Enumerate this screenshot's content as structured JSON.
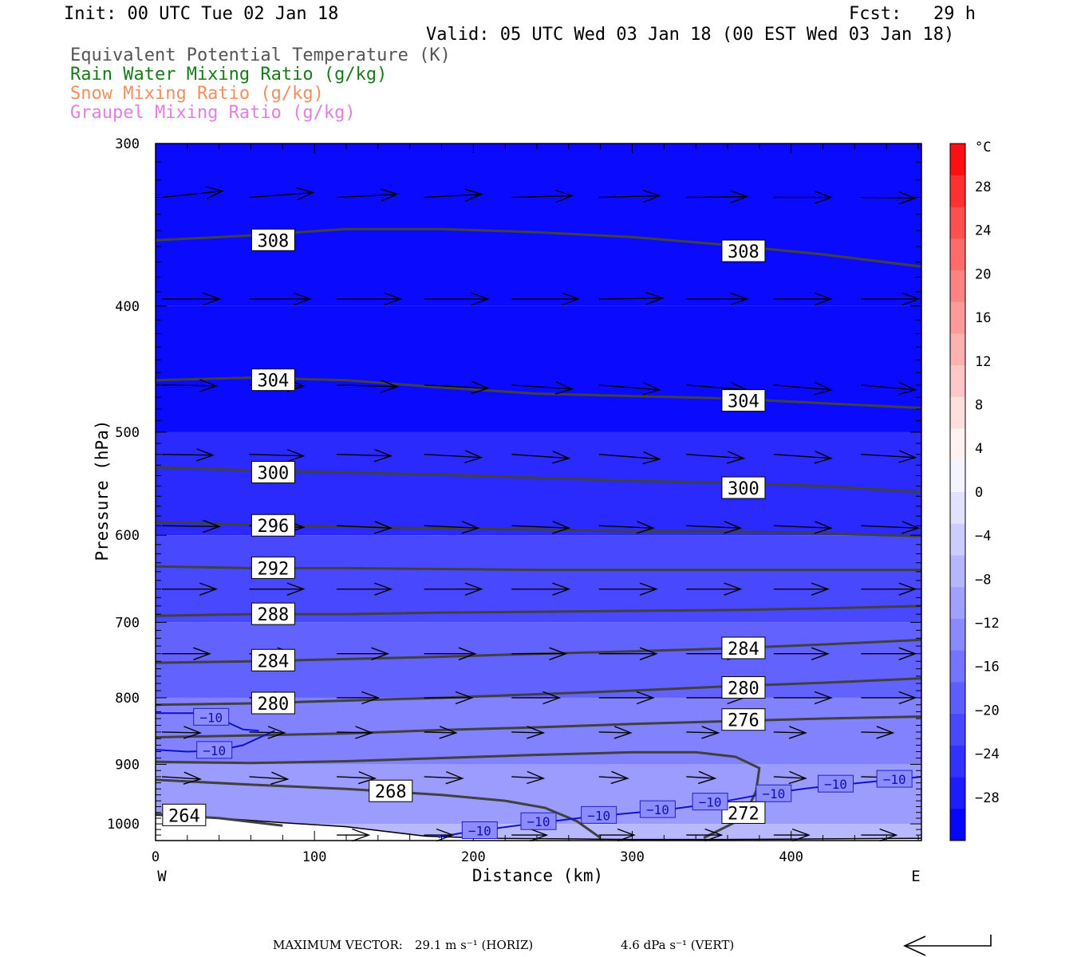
{
  "header": {
    "init": "Init: 00 UTC Tue 02 Jan 18",
    "fcst": "Fcst:   29 h",
    "valid": "Valid: 05 UTC Wed 03 Jan 18 (00 EST Wed 03 Jan 18)"
  },
  "legend": [
    {
      "label": "Equivalent Potential Temperature (K)",
      "color": "#555555"
    },
    {
      "label": "Rain Water Mixing Ratio (g/kg)",
      "color": "#1a7a1a"
    },
    {
      "label": "Snow Mixing Ratio (g/kg)",
      "color": "#f09060"
    },
    {
      "label": "Graupel Mixing Ratio (g/kg)",
      "color": "#e080e0"
    }
  ],
  "footer": {
    "max_vector_label": "MAXIMUM VECTOR:",
    "horiz": "29.1 m s⁻¹ (HORIZ)",
    "vert": "4.6 dPa s⁻¹ (VERT)"
  },
  "chart_data": {
    "type": "cross-section",
    "xlabel": "Distance (km)",
    "ylabel": "Pressure (hPa)",
    "x_range": [
      0,
      482
    ],
    "y_range": [
      300,
      1030
    ],
    "y_log": true,
    "x_ticks": [
      0,
      100,
      200,
      300,
      400
    ],
    "y_ticks": [
      300,
      400,
      500,
      600,
      700,
      800,
      900,
      1000
    ],
    "x_end_labels": {
      "left": "W",
      "right": "E"
    },
    "colorbar": {
      "unit": "°C",
      "tick_labels": [
        28,
        24,
        20,
        16,
        12,
        8,
        4,
        0,
        -4,
        -8,
        -12,
        -16,
        -20,
        -24,
        -28
      ],
      "colors": [
        "#ff1010",
        "#ff3030",
        "#ff5050",
        "#ff6a6a",
        "#ff8282",
        "#ff9a9a",
        "#ffb0b0",
        "#ffc8c8",
        "#ffdede",
        "#fff2f2",
        "#f4f4ff",
        "#e2e2ff",
        "#ccccff",
        "#b6b6ff",
        "#a0a0ff",
        "#8a8aff",
        "#7474ff",
        "#5e5eff",
        "#4848ff",
        "#3232ff",
        "#1c1cff",
        "#0606ff"
      ]
    },
    "temperature_fill": {
      "levels": [
        300,
        400,
        500,
        600,
        700,
        800,
        900,
        1000
      ],
      "colors": [
        "#0a0aff",
        "#0a0aff",
        "#2a2aff",
        "#4848ff",
        "#6262ff",
        "#8282ff",
        "#9c9cff",
        "#b8b8ff"
      ]
    },
    "theta_e_contours": [
      {
        "value": 308,
        "points": [
          [
            0,
            356
          ],
          [
            60,
            353
          ],
          [
            120,
            349
          ],
          [
            180,
            349
          ],
          [
            240,
            351
          ],
          [
            300,
            354
          ],
          [
            360,
            359
          ],
          [
            420,
            365
          ],
          [
            482,
            373
          ]
        ],
        "labels": [
          [
            74,
            356
          ],
          [
            370,
            363
          ]
        ]
      },
      {
        "value": 304,
        "points": [
          [
            0,
            456
          ],
          [
            60,
            454
          ],
          [
            120,
            456
          ],
          [
            180,
            462
          ],
          [
            240,
            467
          ],
          [
            300,
            469
          ],
          [
            360,
            471
          ],
          [
            420,
            475
          ],
          [
            482,
            479
          ]
        ],
        "labels": [
          [
            74,
            456
          ],
          [
            370,
            473
          ]
        ]
      },
      {
        "value": 300,
        "points": [
          [
            0,
            532
          ],
          [
            60,
            535
          ],
          [
            120,
            537
          ],
          [
            180,
            539
          ],
          [
            240,
            542
          ],
          [
            300,
            545
          ],
          [
            360,
            547
          ],
          [
            420,
            550
          ],
          [
            482,
            556
          ]
        ],
        "labels": [
          [
            74,
            537
          ],
          [
            370,
            552
          ]
        ]
      },
      {
        "value": 296,
        "points": [
          [
            0,
            586
          ],
          [
            60,
            589
          ],
          [
            120,
            591
          ],
          [
            180,
            593
          ],
          [
            240,
            594
          ],
          [
            300,
            596
          ],
          [
            360,
            596
          ],
          [
            420,
            598
          ],
          [
            482,
            601
          ]
        ],
        "labels": [
          [
            74,
            590
          ]
        ]
      },
      {
        "value": 292,
        "points": [
          [
            0,
            634
          ],
          [
            60,
            636
          ],
          [
            120,
            636
          ],
          [
            180,
            637
          ],
          [
            240,
            638
          ],
          [
            300,
            638
          ],
          [
            360,
            638
          ],
          [
            420,
            638
          ],
          [
            482,
            638
          ]
        ],
        "labels": [
          [
            74,
            636
          ]
        ]
      },
      {
        "value": 288,
        "points": [
          [
            0,
            692
          ],
          [
            60,
            690
          ],
          [
            120,
            690
          ],
          [
            180,
            688
          ],
          [
            240,
            687
          ],
          [
            300,
            686
          ],
          [
            360,
            685
          ],
          [
            420,
            683
          ],
          [
            482,
            680
          ]
        ],
        "labels": [
          [
            74,
            690
          ]
        ]
      },
      {
        "value": 284,
        "points": [
          [
            0,
            752
          ],
          [
            60,
            750
          ],
          [
            120,
            747
          ],
          [
            180,
            744
          ],
          [
            240,
            740
          ],
          [
            300,
            737
          ],
          [
            360,
            733
          ],
          [
            420,
            728
          ],
          [
            482,
            722
          ]
        ],
        "labels": [
          [
            74,
            749
          ],
          [
            370,
            733
          ]
        ]
      },
      {
        "value": 280,
        "points": [
          [
            0,
            810
          ],
          [
            60,
            808
          ],
          [
            120,
            804
          ],
          [
            180,
            800
          ],
          [
            240,
            795
          ],
          [
            300,
            790
          ],
          [
            360,
            784
          ],
          [
            420,
            779
          ],
          [
            482,
            773
          ]
        ],
        "labels": [
          [
            74,
            808
          ],
          [
            370,
            786
          ]
        ]
      },
      {
        "value": 276,
        "points": [
          [
            0,
            858
          ],
          [
            60,
            855
          ],
          [
            120,
            852
          ],
          [
            180,
            847
          ],
          [
            240,
            843
          ],
          [
            300,
            838
          ],
          [
            360,
            834
          ],
          [
            420,
            830
          ],
          [
            482,
            827
          ]
        ],
        "labels": [
          [
            370,
            832
          ]
        ]
      },
      {
        "value": 272,
        "points": [
          [
            0,
            896
          ],
          [
            60,
            898
          ],
          [
            120,
            895
          ],
          [
            180,
            890
          ],
          [
            240,
            885
          ],
          [
            300,
            881
          ],
          [
            340,
            881
          ],
          [
            365,
            888
          ],
          [
            380,
            906
          ],
          [
            378,
            943
          ],
          [
            370,
            990
          ],
          [
            345,
            1025
          ]
        ],
        "labels": [
          [
            370,
            981
          ]
        ]
      },
      {
        "value": 268,
        "points": [
          [
            0,
            925
          ],
          [
            60,
            933
          ],
          [
            120,
            940
          ],
          [
            180,
            950
          ],
          [
            220,
            960
          ],
          [
            245,
            972
          ],
          [
            265,
            995
          ],
          [
            280,
            1025
          ]
        ],
        "labels": [
          [
            148,
            944
          ]
        ]
      },
      {
        "value": 264,
        "points": [
          [
            0,
            983
          ],
          [
            40,
            990
          ],
          [
            80,
            1003
          ]
        ],
        "labels": [
          [
            18,
            985
          ]
        ]
      }
    ],
    "temperature_minus10": [
      {
        "points": [
          [
            0,
            822
          ],
          [
            25,
            822
          ],
          [
            40,
            830
          ],
          [
            55,
            846
          ],
          [
            65,
            848
          ]
        ],
        "labels": [
          [
            35,
            828
          ]
        ]
      },
      {
        "points": [
          [
            0,
            877
          ],
          [
            20,
            880
          ],
          [
            40,
            878
          ],
          [
            55,
            870
          ],
          [
            75,
            848
          ]
        ],
        "labels": [
          [
            37,
            878
          ]
        ]
      },
      {
        "points": [
          [
            178,
            1024
          ],
          [
            195,
            1015
          ],
          [
            230,
            1002
          ],
          [
            275,
            987
          ],
          [
            320,
            976
          ],
          [
            350,
            965
          ],
          [
            380,
            950
          ],
          [
            410,
            939
          ],
          [
            440,
            931
          ],
          [
            482,
            920
          ]
        ],
        "labels": [
          [
            204,
            1012
          ],
          [
            241,
            996
          ],
          [
            279,
            985
          ],
          [
            316,
            975
          ],
          [
            349,
            962
          ],
          [
            389,
            948
          ],
          [
            428,
            932
          ],
          [
            465,
            924
          ]
        ]
      }
    ],
    "wind_vectors": [
      {
        "p": 330,
        "x": [
          0,
          55,
          110,
          165,
          220,
          275,
          330,
          385,
          440
        ],
        "u": [
          38,
          40,
          38,
          36,
          38,
          38,
          38,
          36,
          34
        ],
        "w": [
          -8,
          -6,
          -4,
          -4,
          -2,
          -2,
          -1,
          0,
          1
        ]
      },
      {
        "p": 395,
        "x": [
          0,
          55,
          110,
          165,
          220,
          275,
          330,
          385,
          440
        ],
        "u": [
          36,
          38,
          40,
          40,
          42,
          40,
          38,
          36,
          36
        ],
        "w": [
          0,
          0,
          0,
          0,
          0,
          -1,
          0,
          0,
          0
        ]
      },
      {
        "p": 460,
        "x": [
          0,
          55,
          110,
          165,
          220,
          275,
          330,
          385,
          440
        ],
        "u": [
          34,
          34,
          38,
          40,
          38,
          38,
          38,
          36,
          34
        ],
        "w": [
          1,
          1,
          2,
          4,
          5,
          6,
          6,
          6,
          6
        ]
      },
      {
        "p": 520,
        "x": [
          0,
          55,
          110,
          165,
          220,
          275,
          330,
          385,
          440
        ],
        "u": [
          32,
          34,
          34,
          36,
          36,
          38,
          36,
          36,
          34
        ],
        "w": [
          1,
          2,
          2,
          4,
          5,
          6,
          5,
          5,
          4
        ]
      },
      {
        "p": 590,
        "x": [
          0,
          55,
          110,
          165,
          220,
          275,
          330,
          385,
          440
        ],
        "u": [
          36,
          34,
          34,
          34,
          36,
          34,
          34,
          36,
          36
        ],
        "w": [
          1,
          2,
          3,
          3,
          3,
          3,
          3,
          3,
          3
        ]
      },
      {
        "p": 660,
        "x": [
          0,
          55,
          110,
          165,
          220,
          275,
          330,
          385,
          440
        ],
        "u": [
          34,
          34,
          34,
          36,
          36,
          36,
          34,
          34,
          34
        ],
        "w": [
          0,
          0,
          0,
          0,
          0,
          0,
          0,
          0,
          0
        ]
      },
      {
        "p": 740,
        "x": [
          0,
          55,
          110,
          165,
          220,
          275,
          330,
          385,
          440
        ],
        "u": [
          30,
          28,
          32,
          32,
          34,
          36,
          36,
          34,
          34
        ],
        "w": [
          0,
          0,
          0,
          0,
          0,
          0,
          0,
          0,
          0
        ]
      },
      {
        "p": 800,
        "x": [
          55,
          110,
          165,
          220,
          275,
          330,
          385,
          440
        ],
        "u": [
          26,
          26,
          30,
          30,
          34,
          36,
          36,
          34
        ],
        "w": [
          0,
          0,
          0,
          0,
          0,
          0,
          0,
          0
        ]
      },
      {
        "p": 850,
        "x": [
          0,
          55,
          110,
          165,
          220,
          275,
          330,
          385,
          440
        ],
        "u": [
          24,
          22,
          22,
          20,
          20,
          20,
          20,
          20,
          20
        ],
        "w": [
          1,
          1,
          1,
          1,
          1,
          1,
          1,
          1,
          1
        ]
      },
      {
        "p": 920,
        "x": [
          0,
          55,
          110,
          165,
          220,
          275,
          330,
          385,
          440
        ],
        "u": [
          24,
          24,
          24,
          24,
          20,
          18,
          18,
          20,
          20
        ],
        "w": [
          3,
          3,
          2,
          2,
          2,
          2,
          2,
          2,
          1
        ]
      },
      {
        "p": 1020,
        "x": [
          110,
          165,
          220,
          275,
          330,
          385,
          440
        ],
        "u": [
          20,
          18,
          22,
          22,
          22,
          22,
          22
        ],
        "w": [
          0,
          0,
          0,
          0,
          0,
          0,
          0
        ]
      }
    ],
    "terrain_pressure": [
      [
        0,
        985
      ],
      [
        40,
        990
      ],
      [
        80,
        998
      ],
      [
        120,
        1005
      ],
      [
        170,
        1022
      ],
      [
        210,
        1026
      ],
      [
        260,
        1027
      ],
      [
        300,
        1028
      ],
      [
        360,
        1028
      ],
      [
        420,
        1027
      ],
      [
        482,
        1026
      ]
    ]
  }
}
